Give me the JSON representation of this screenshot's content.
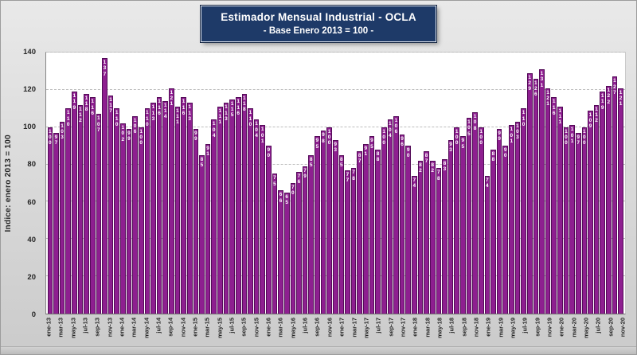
{
  "header": {
    "title": "Estimador Mensual Industrial - OCLA",
    "subtitle": "- Base Enero 2013 = 100 -"
  },
  "colors": {
    "bar_fill": "#8e1f90",
    "bar_border": "#530b57",
    "title_box_bg": "#1e3a68",
    "title_text": "#ffffff",
    "plot_bg": "#ffffff",
    "page_bg": "#d8d8d8",
    "axis_text": "#262626",
    "gridline": "#bdbdbd"
  },
  "chart_data": {
    "type": "bar",
    "title": "Estimador Mensual Industrial - OCLA",
    "subtitle": "- Base Enero 2013 = 100 -",
    "xlabel": "",
    "ylabel": "Indice: enero 2013 = 100",
    "ylim": [
      0,
      140
    ],
    "yticks": [
      0,
      20,
      40,
      60,
      80,
      100,
      120,
      140
    ],
    "grid": "horizontal-dashed",
    "legend": "none",
    "bar_color": "#8e1f90",
    "bar_border_color": "#530b57",
    "x_tick_step": 2,
    "x": [
      "ene-13",
      "feb-13",
      "mar-13",
      "abr-13",
      "may-13",
      "jun-13",
      "jul-13",
      "ago-13",
      "sep-13",
      "oct-13",
      "nov-13",
      "dic-13",
      "ene-14",
      "feb-14",
      "mar-14",
      "abr-14",
      "may-14",
      "jun-14",
      "jul-14",
      "ago-14",
      "sep-14",
      "oct-14",
      "nov-14",
      "dic-14",
      "ene-15",
      "feb-15",
      "mar-15",
      "abr-15",
      "may-15",
      "jun-15",
      "jul-15",
      "ago-15",
      "sep-15",
      "oct-15",
      "nov-15",
      "dic-15",
      "ene-16",
      "feb-16",
      "mar-16",
      "abr-16",
      "may-16",
      "jun-16",
      "jul-16",
      "ago-16",
      "sep-16",
      "oct-16",
      "nov-16",
      "dic-16",
      "ene-17",
      "feb-17",
      "mar-17",
      "abr-17",
      "may-17",
      "jun-17",
      "jul-17",
      "ago-17",
      "sep-17",
      "oct-17",
      "nov-17",
      "dic-17",
      "ene-18",
      "feb-18",
      "mar-18",
      "abr-18",
      "may-18",
      "jun-18",
      "jul-18",
      "ago-18",
      "sep-18",
      "oct-18",
      "nov-18",
      "dic-18",
      "ene-19",
      "feb-19",
      "mar-19",
      "abr-19",
      "may-19",
      "jun-19",
      "jul-19",
      "ago-19",
      "sep-19",
      "oct-19",
      "nov-19",
      "dic-19",
      "ene-20",
      "feb-20",
      "mar-20",
      "abr-20",
      "may-20",
      "jun-20",
      "jul-20",
      "ago-20",
      "sep-20",
      "oct-20",
      "nov-20"
    ],
    "values": [
      100,
      97,
      103,
      110,
      119,
      112,
      118,
      116,
      107,
      137,
      117,
      110,
      102,
      99,
      106,
      100,
      110,
      113,
      116,
      114,
      121,
      111,
      116,
      113,
      99,
      85,
      91,
      104,
      111,
      113,
      115,
      116,
      118,
      110,
      104,
      101,
      90,
      75,
      66,
      65,
      70,
      76,
      79,
      85,
      95,
      98,
      100,
      93,
      85,
      77,
      78,
      87,
      91,
      95,
      88,
      100,
      104,
      106,
      96,
      90,
      74,
      82,
      87,
      82,
      78,
      83,
      93,
      100,
      95,
      105,
      108,
      100,
      74,
      88,
      99,
      90,
      101,
      103,
      110,
      129,
      126,
      131,
      121,
      116,
      111,
      100,
      101,
      97,
      100,
      109,
      112,
      119,
      122,
      127,
      121
    ],
    "x_tick_labels": [
      "ene-13",
      "mar-13",
      "may-13",
      "jul-13",
      "sep-13",
      "nov-13",
      "ene-14",
      "mar-14",
      "may-14",
      "jul-14",
      "sep-14",
      "nov-14",
      "ene-15",
      "mar-15",
      "may-15",
      "jul-15",
      "sep-15",
      "nov-15",
      "ene-16",
      "mar-16",
      "may-16",
      "jul-16",
      "sep-16",
      "nov-16",
      "ene-17",
      "mar-17",
      "may-17",
      "jul-17",
      "sep-17",
      "nov-17",
      "ene-18",
      "mar-18",
      "may-18",
      "jul-18",
      "sep-18",
      "nov-18",
      "ene-19",
      "mar-19",
      "may-19",
      "jul-19",
      "sep-19",
      "nov-19",
      "ene-20",
      "mar-20",
      "may-20",
      "jul-20",
      "sep-20",
      "nov-20"
    ]
  }
}
